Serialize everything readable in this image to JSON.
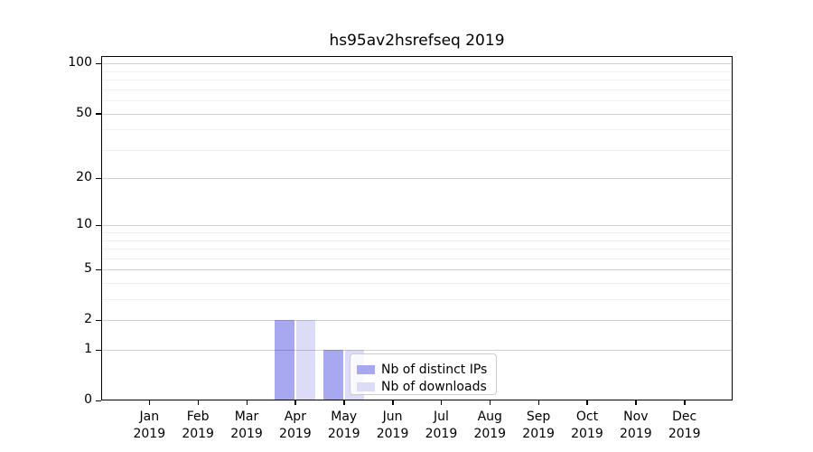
{
  "chart_data": {
    "type": "bar",
    "title": "hs95av2hsrefseq 2019",
    "categories": [
      "Jan 2019",
      "Feb 2019",
      "Mar 2019",
      "Apr 2019",
      "May 2019",
      "Jun 2019",
      "Jul 2019",
      "Aug 2019",
      "Sep 2019",
      "Oct 2019",
      "Nov 2019",
      "Dec 2019"
    ],
    "series": [
      {
        "name": "Nb of distinct IPs",
        "color": "#a8a8f0",
        "values": [
          0,
          0,
          0,
          2,
          1,
          0,
          0,
          0,
          0,
          0,
          0,
          0
        ]
      },
      {
        "name": "Nb of downloads",
        "color": "#dcdcf8",
        "values": [
          0,
          0,
          0,
          2,
          1,
          0,
          0,
          0,
          0,
          0,
          0,
          0
        ]
      }
    ],
    "xlabel": "",
    "ylabel": "",
    "yscale": "log1p",
    "ylim": [
      0,
      111
    ],
    "yticks": [
      0,
      1,
      2,
      5,
      10,
      20,
      50,
      100
    ],
    "yticks_minor": [
      3,
      4,
      6,
      7,
      8,
      9,
      30,
      40,
      60,
      70,
      80,
      90
    ],
    "grid": "on",
    "legend_position": "inside lower center"
  }
}
